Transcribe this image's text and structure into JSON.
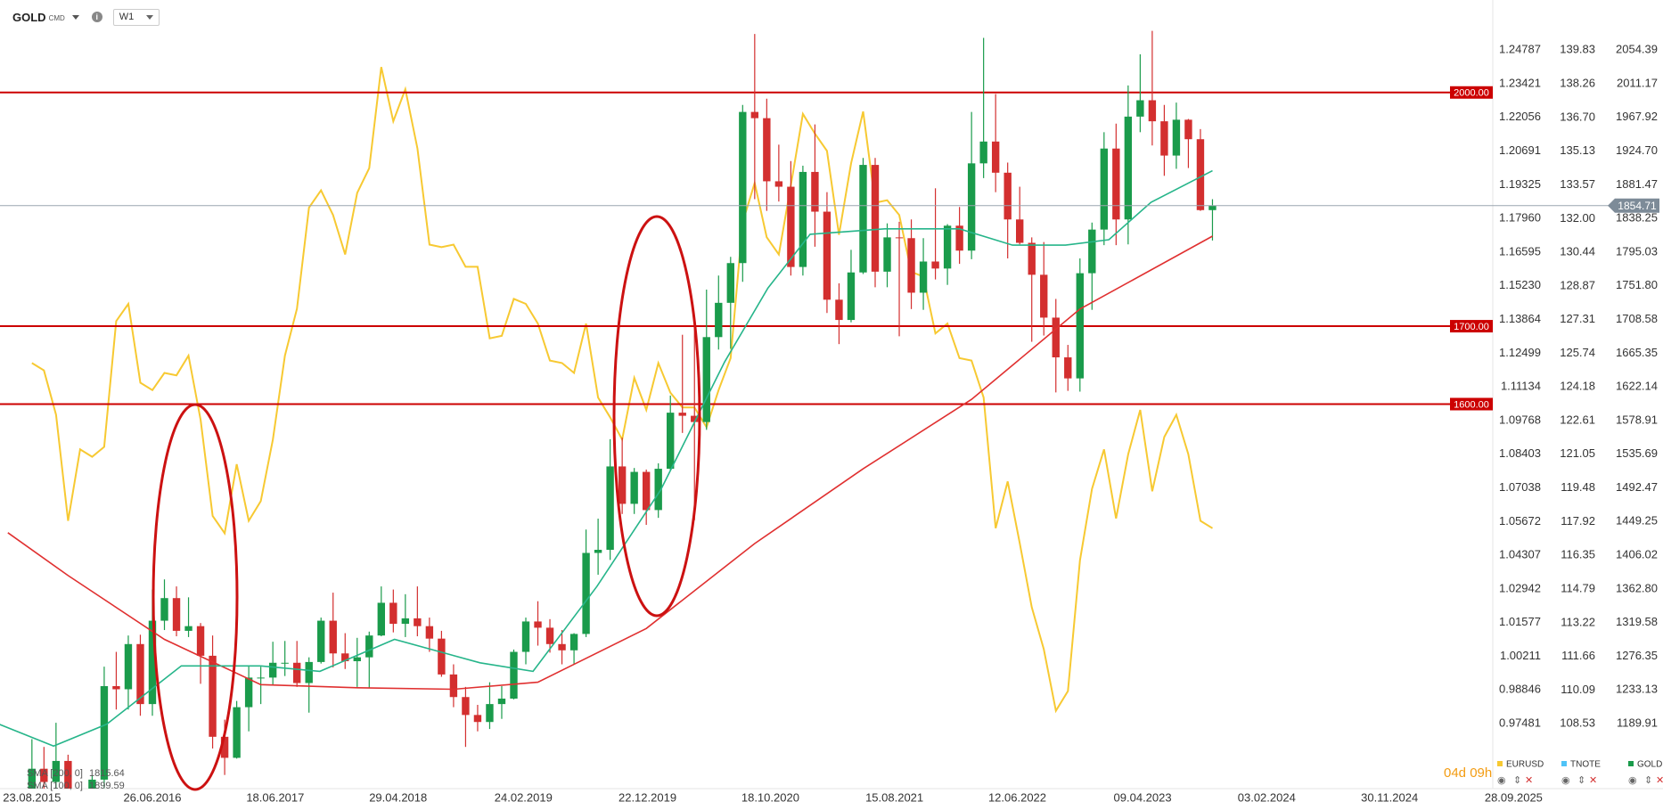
{
  "toolbar": {
    "symbol": "GOLD",
    "market": "CMD",
    "interval": "W1"
  },
  "chart_data": {
    "type": "candlestick",
    "x": [
      0,
      1,
      2,
      3,
      4,
      5,
      6,
      7,
      8,
      9,
      10,
      11,
      12,
      13,
      14,
      15,
      16,
      17,
      18,
      19,
      20,
      21,
      22,
      23,
      24,
      25,
      26,
      27,
      28,
      29,
      30,
      31,
      32,
      33,
      34,
      35,
      36,
      37,
      38,
      39,
      40,
      41,
      42,
      43,
      44,
      45,
      46,
      47,
      48,
      49,
      50,
      51,
      52,
      53,
      54,
      55,
      56,
      57,
      58,
      59,
      60,
      61,
      62,
      63,
      64,
      65,
      66,
      67,
      68,
      69,
      70,
      71,
      72,
      73,
      74,
      75,
      76,
      77,
      78,
      79,
      80,
      81,
      82,
      83,
      84,
      85,
      86,
      87,
      88,
      89,
      90,
      91,
      92,
      93,
      94,
      95,
      96,
      97,
      98
    ],
    "xlim": [
      -2.65,
      135.4
    ],
    "xticks": [
      {
        "value": 0,
        "label": "23.08.2015"
      },
      {
        "value": 10,
        "label": "26.06.2016"
      },
      {
        "value": 20.2,
        "label": "18.06.2017"
      },
      {
        "value": 30.4,
        "label": "29.04.2018"
      },
      {
        "value": 40.8,
        "label": "24.02.2019"
      },
      {
        "value": 51.1,
        "label": "22.12.2019"
      },
      {
        "value": 61.3,
        "label": "18.10.2020"
      },
      {
        "value": 71.6,
        "label": "15.08.2021"
      },
      {
        "value": 81.8,
        "label": "12.06.2022"
      },
      {
        "value": 92.2,
        "label": "09.04.2023"
      },
      {
        "value": 102.5,
        "label": "03.02.2024"
      },
      {
        "value": 112.7,
        "label": "30.11.2024"
      },
      {
        "value": 123,
        "label": "28.09.2025"
      }
    ],
    "ylim": [
      1106.48,
      2118.67
    ],
    "yticks": [
      {
        "value": 2054.39,
        "label": "2054.39"
      },
      {
        "value": 2011.17,
        "label": "2011.17"
      },
      {
        "value": 1967.92,
        "label": "1967.92"
      },
      {
        "value": 1924.7,
        "label": "1924.70"
      },
      {
        "value": 1881.47,
        "label": "1881.47"
      },
      {
        "value": 1838.25,
        "label": "1838.25"
      },
      {
        "value": 1795.03,
        "label": "1795.03"
      },
      {
        "value": 1751.8,
        "label": "1751.80"
      },
      {
        "value": 1708.58,
        "label": "1708.58"
      },
      {
        "value": 1665.35,
        "label": "1665.35"
      },
      {
        "value": 1622.14,
        "label": "1622.14"
      },
      {
        "value": 1578.91,
        "label": "1578.91"
      },
      {
        "value": 1535.69,
        "label": "1535.69"
      },
      {
        "value": 1492.47,
        "label": "1492.47"
      },
      {
        "value": 1449.25,
        "label": "1449.25"
      },
      {
        "value": 1406.02,
        "label": "1406.02"
      },
      {
        "value": 1362.8,
        "label": "1362.80"
      },
      {
        "value": 1319.58,
        "label": "1319.58"
      },
      {
        "value": 1276.35,
        "label": "1276.35"
      },
      {
        "value": 1233.13,
        "label": "1233.13"
      },
      {
        "value": 1189.91,
        "label": "1189.91"
      }
    ],
    "eurusd_axis": {
      "ylim": [
        0.94845,
        1.26818
      ],
      "yticks": [
        {
          "value": 1.24787,
          "label": "1.24787"
        },
        {
          "value": 1.23421,
          "label": "1.23421"
        },
        {
          "value": 1.22056,
          "label": "1.22056"
        },
        {
          "value": 1.20691,
          "label": "1.20691"
        },
        {
          "value": 1.19325,
          "label": "1.19325"
        },
        {
          "value": 1.1796,
          "label": "1.17960"
        },
        {
          "value": 1.16595,
          "label": "1.16595"
        },
        {
          "value": 1.1523,
          "label": "1.15230"
        },
        {
          "value": 1.13864,
          "label": "1.13864"
        },
        {
          "value": 1.12499,
          "label": "1.12499"
        },
        {
          "value": 1.11134,
          "label": "1.11134"
        },
        {
          "value": 1.09768,
          "label": "1.09768"
        },
        {
          "value": 1.08403,
          "label": "1.08403"
        },
        {
          "value": 1.07038,
          "label": "1.07038"
        },
        {
          "value": 1.05672,
          "label": "1.05672"
        },
        {
          "value": 1.04307,
          "label": "1.04307"
        },
        {
          "value": 1.02942,
          "label": "1.02942"
        },
        {
          "value": 1.01577,
          "label": "1.01577"
        },
        {
          "value": 1.00211,
          "label": "1.00211"
        },
        {
          "value": 0.98846,
          "label": "0.98846"
        },
        {
          "value": 0.97481,
          "label": "0.97481"
        }
      ]
    },
    "tnote_axis": {
      "ylim": [
        105.51,
        142.16
      ],
      "yticks": [
        {
          "value": 139.83,
          "label": "139.83"
        },
        {
          "value": 138.26,
          "label": "138.26"
        },
        {
          "value": 136.7,
          "label": "136.70"
        },
        {
          "value": 135.13,
          "label": "135.13"
        },
        {
          "value": 133.57,
          "label": "133.57"
        },
        {
          "value": 132,
          "label": "132.00"
        },
        {
          "value": 130.44,
          "label": "130.44"
        },
        {
          "value": 128.87,
          "label": "128.87"
        },
        {
          "value": 127.31,
          "label": "127.31"
        },
        {
          "value": 125.74,
          "label": "125.74"
        },
        {
          "value": 124.18,
          "label": "124.18"
        },
        {
          "value": 122.61,
          "label": "122.61"
        },
        {
          "value": 121.05,
          "label": "121.05"
        },
        {
          "value": 119.48,
          "label": "119.48"
        },
        {
          "value": 117.92,
          "label": "117.92"
        },
        {
          "value": 116.35,
          "label": "116.35"
        },
        {
          "value": 114.79,
          "label": "114.79"
        },
        {
          "value": 113.22,
          "label": "113.22"
        },
        {
          "value": 111.66,
          "label": "111.66"
        },
        {
          "value": 110.09,
          "label": "110.09"
        },
        {
          "value": 108.53,
          "label": "108.53"
        }
      ]
    },
    "series": [
      {
        "name": "GOLD",
        "color": "#1a9b4b",
        "down_color": "#d32f2f",
        "open": [
          1095,
          1132,
          1115,
          1142,
          1065,
          1061,
          1118,
          1238,
          1234,
          1292,
          1215,
          1322,
          1351,
          1309,
          1315,
          1277,
          1173,
          1146,
          1211,
          1249,
          1249,
          1268,
          1268,
          1242,
          1269,
          1322,
          1280,
          1270,
          1275,
          1303,
          1345,
          1318,
          1325,
          1315,
          1299,
          1253,
          1224,
          1201,
          1192,
          1215,
          1222,
          1282,
          1321,
          1313,
          1292,
          1284,
          1305,
          1409,
          1413,
          1520,
          1472,
          1513,
          1464,
          1517,
          1589,
          1585,
          1577,
          1686,
          1730,
          1781,
          1975,
          1967,
          1886,
          1879,
          1776,
          1898,
          1847,
          1734,
          1708,
          1769,
          1907,
          1770,
          1814,
          1813,
          1743,
          1783,
          1774,
          1829,
          1797,
          1909,
          1937,
          1897,
          1837,
          1807,
          1766,
          1711,
          1660,
          1633,
          1768,
          1824,
          1928,
          1837,
          1969,
          1990,
          1963,
          1919,
          1965,
          1940,
          1849
        ],
        "high": [
          1170,
          1160,
          1191,
          1150,
          1088,
          1123,
          1263,
          1282,
          1303,
          1304,
          1362,
          1375,
          1366,
          1352,
          1319,
          1303,
          1195,
          1219,
          1264,
          1263,
          1295,
          1296,
          1296,
          1275,
          1326,
          1358,
          1306,
          1300,
          1308,
          1366,
          1362,
          1356,
          1366,
          1326,
          1309,
          1266,
          1237,
          1214,
          1243,
          1238,
          1285,
          1326,
          1347,
          1324,
          1310,
          1306,
          1439,
          1453,
          1555,
          1557,
          1518,
          1516,
          1524,
          1611,
          1689,
          1704,
          1747,
          1765,
          1789,
          1984,
          2075,
          1992,
          1933,
          1912,
          1906,
          1959,
          1872,
          1755,
          1798,
          1916,
          1916,
          1832,
          1834,
          1837,
          1813,
          1877,
          1831,
          1853,
          1975,
          2070,
          1998,
          1910,
          1879,
          1814,
          1808,
          1735,
          1676,
          1787,
          1833,
          1949,
          1960,
          2009,
          2049,
          2079,
          1984,
          1987,
          1966,
          1953,
          1863
        ],
        "low": [
          1077,
          1098,
          1098,
          1052,
          1046,
          1052,
          1107,
          1208,
          1208,
          1200,
          1200,
          1310,
          1302,
          1301,
          1241,
          1158,
          1124,
          1145,
          1180,
          1215,
          1240,
          1251,
          1237,
          1204,
          1267,
          1262,
          1260,
          1237,
          1236,
          1302,
          1307,
          1301,
          1302,
          1282,
          1250,
          1211,
          1160,
          1180,
          1183,
          1196,
          1221,
          1266,
          1290,
          1281,
          1266,
          1266,
          1301,
          1381,
          1400,
          1459,
          1459,
          1445,
          1454,
          1515,
          1563,
          1451,
          1567,
          1670,
          1671,
          1757,
          1863,
          1848,
          1860,
          1765,
          1765,
          1802,
          1717,
          1677,
          1705,
          1767,
          1750,
          1750,
          1687,
          1722,
          1721,
          1760,
          1753,
          1780,
          1786,
          1890,
          1872,
          1787,
          1805,
          1680,
          1688,
          1615,
          1617,
          1616,
          1721,
          1804,
          1804,
          1805,
          1949,
          1932,
          1893,
          1902,
          1903,
          1848,
          1810
        ],
        "close": [
          1132,
          1115,
          1142,
          1065,
          1061,
          1118,
          1238,
          1234,
          1292,
          1215,
          1322,
          1351,
          1309,
          1315,
          1277,
          1173,
          1146,
          1211,
          1249,
          1249,
          1268,
          1268,
          1242,
          1269,
          1322,
          1280,
          1270,
          1275,
          1303,
          1345,
          1318,
          1325,
          1315,
          1299,
          1253,
          1224,
          1201,
          1192,
          1215,
          1222,
          1282,
          1321,
          1313,
          1292,
          1284,
          1305,
          1409,
          1413,
          1520,
          1472,
          1513,
          1464,
          1517,
          1589,
          1585,
          1577,
          1686,
          1730,
          1781,
          1975,
          1967,
          1886,
          1879,
          1776,
          1898,
          1847,
          1734,
          1708,
          1769,
          1907,
          1770,
          1814,
          1813,
          1743,
          1783,
          1774,
          1829,
          1797,
          1909,
          1937,
          1897,
          1837,
          1807,
          1766,
          1711,
          1660,
          1633,
          1768,
          1824,
          1928,
          1837,
          1969,
          1990,
          1963,
          1919,
          1965,
          1940,
          1849,
          1854.71
        ]
      },
      {
        "name": "EURUSD",
        "color": "#f7c932",
        "axis": "eurusd",
        "values": [
          1.121,
          1.118,
          1.1,
          1.057,
          1.086,
          1.083,
          1.087,
          1.138,
          1.145,
          1.113,
          1.11,
          1.117,
          1.116,
          1.124,
          1.098,
          1.059,
          1.052,
          1.08,
          1.057,
          1.065,
          1.09,
          1.124,
          1.143,
          1.184,
          1.191,
          1.181,
          1.165,
          1.19,
          1.2,
          1.241,
          1.219,
          1.232,
          1.208,
          1.169,
          1.168,
          1.169,
          1.16,
          1.16,
          1.131,
          1.132,
          1.147,
          1.145,
          1.137,
          1.122,
          1.121,
          1.117,
          1.137,
          1.107,
          1.099,
          1.09,
          1.115,
          1.102,
          1.121,
          1.109,
          1.103,
          1.103,
          1.095,
          1.11,
          1.123,
          1.178,
          1.194,
          1.172,
          1.165,
          1.193,
          1.222,
          1.214,
          1.207,
          1.173,
          1.202,
          1.223,
          1.186,
          1.187,
          1.181,
          1.158,
          1.156,
          1.133,
          1.137,
          1.123,
          1.122,
          1.107,
          1.054,
          1.073,
          1.048,
          1.022,
          1.005,
          0.98,
          0.988,
          1.041,
          1.07,
          1.086,
          1.058,
          1.084,
          1.102,
          1.069,
          1.091,
          1.1,
          1.084,
          1.057,
          1.054
        ]
      }
    ],
    "hidden_series": [
      {
        "name": "TNOTE",
        "color": "#4fc3f7"
      }
    ],
    "indicators": [
      {
        "name": "SMA [200, 0]",
        "color": "#e03030",
        "x": [
          -2,
          3,
          11,
          19,
          27,
          35,
          42,
          51,
          60,
          69,
          78,
          87,
          98
        ],
        "values": [
          1435,
          1380,
          1298,
          1240,
          1236,
          1234,
          1243,
          1312,
          1421,
          1517,
          1606,
          1722,
          1815.64
        ]
      },
      {
        "name": "SMA [100, 0]",
        "color": "#26b58a",
        "x": [
          -2.7,
          1.8,
          6.2,
          12.4,
          19,
          23.9,
          30.1,
          37.2,
          41.6,
          46.9,
          52.2,
          57.5,
          61.1,
          64.6,
          70.8,
          77,
          81.4,
          85.8,
          89.4,
          92.9,
          98
        ],
        "values": [
          1189,
          1161,
          1189,
          1264,
          1264,
          1257,
          1298,
          1268,
          1257,
          1366,
          1490,
          1654,
          1749,
          1818,
          1825,
          1825,
          1804,
          1804,
          1811,
          1859,
          1899.59
        ]
      }
    ],
    "levels": {
      "color": "#cc0000",
      "values": [
        2000,
        1700,
        1600
      ],
      "value_labels": [
        "2000.00",
        "1700.00",
        "1600.00"
      ]
    },
    "countdown": "04d 09h"
  }
}
